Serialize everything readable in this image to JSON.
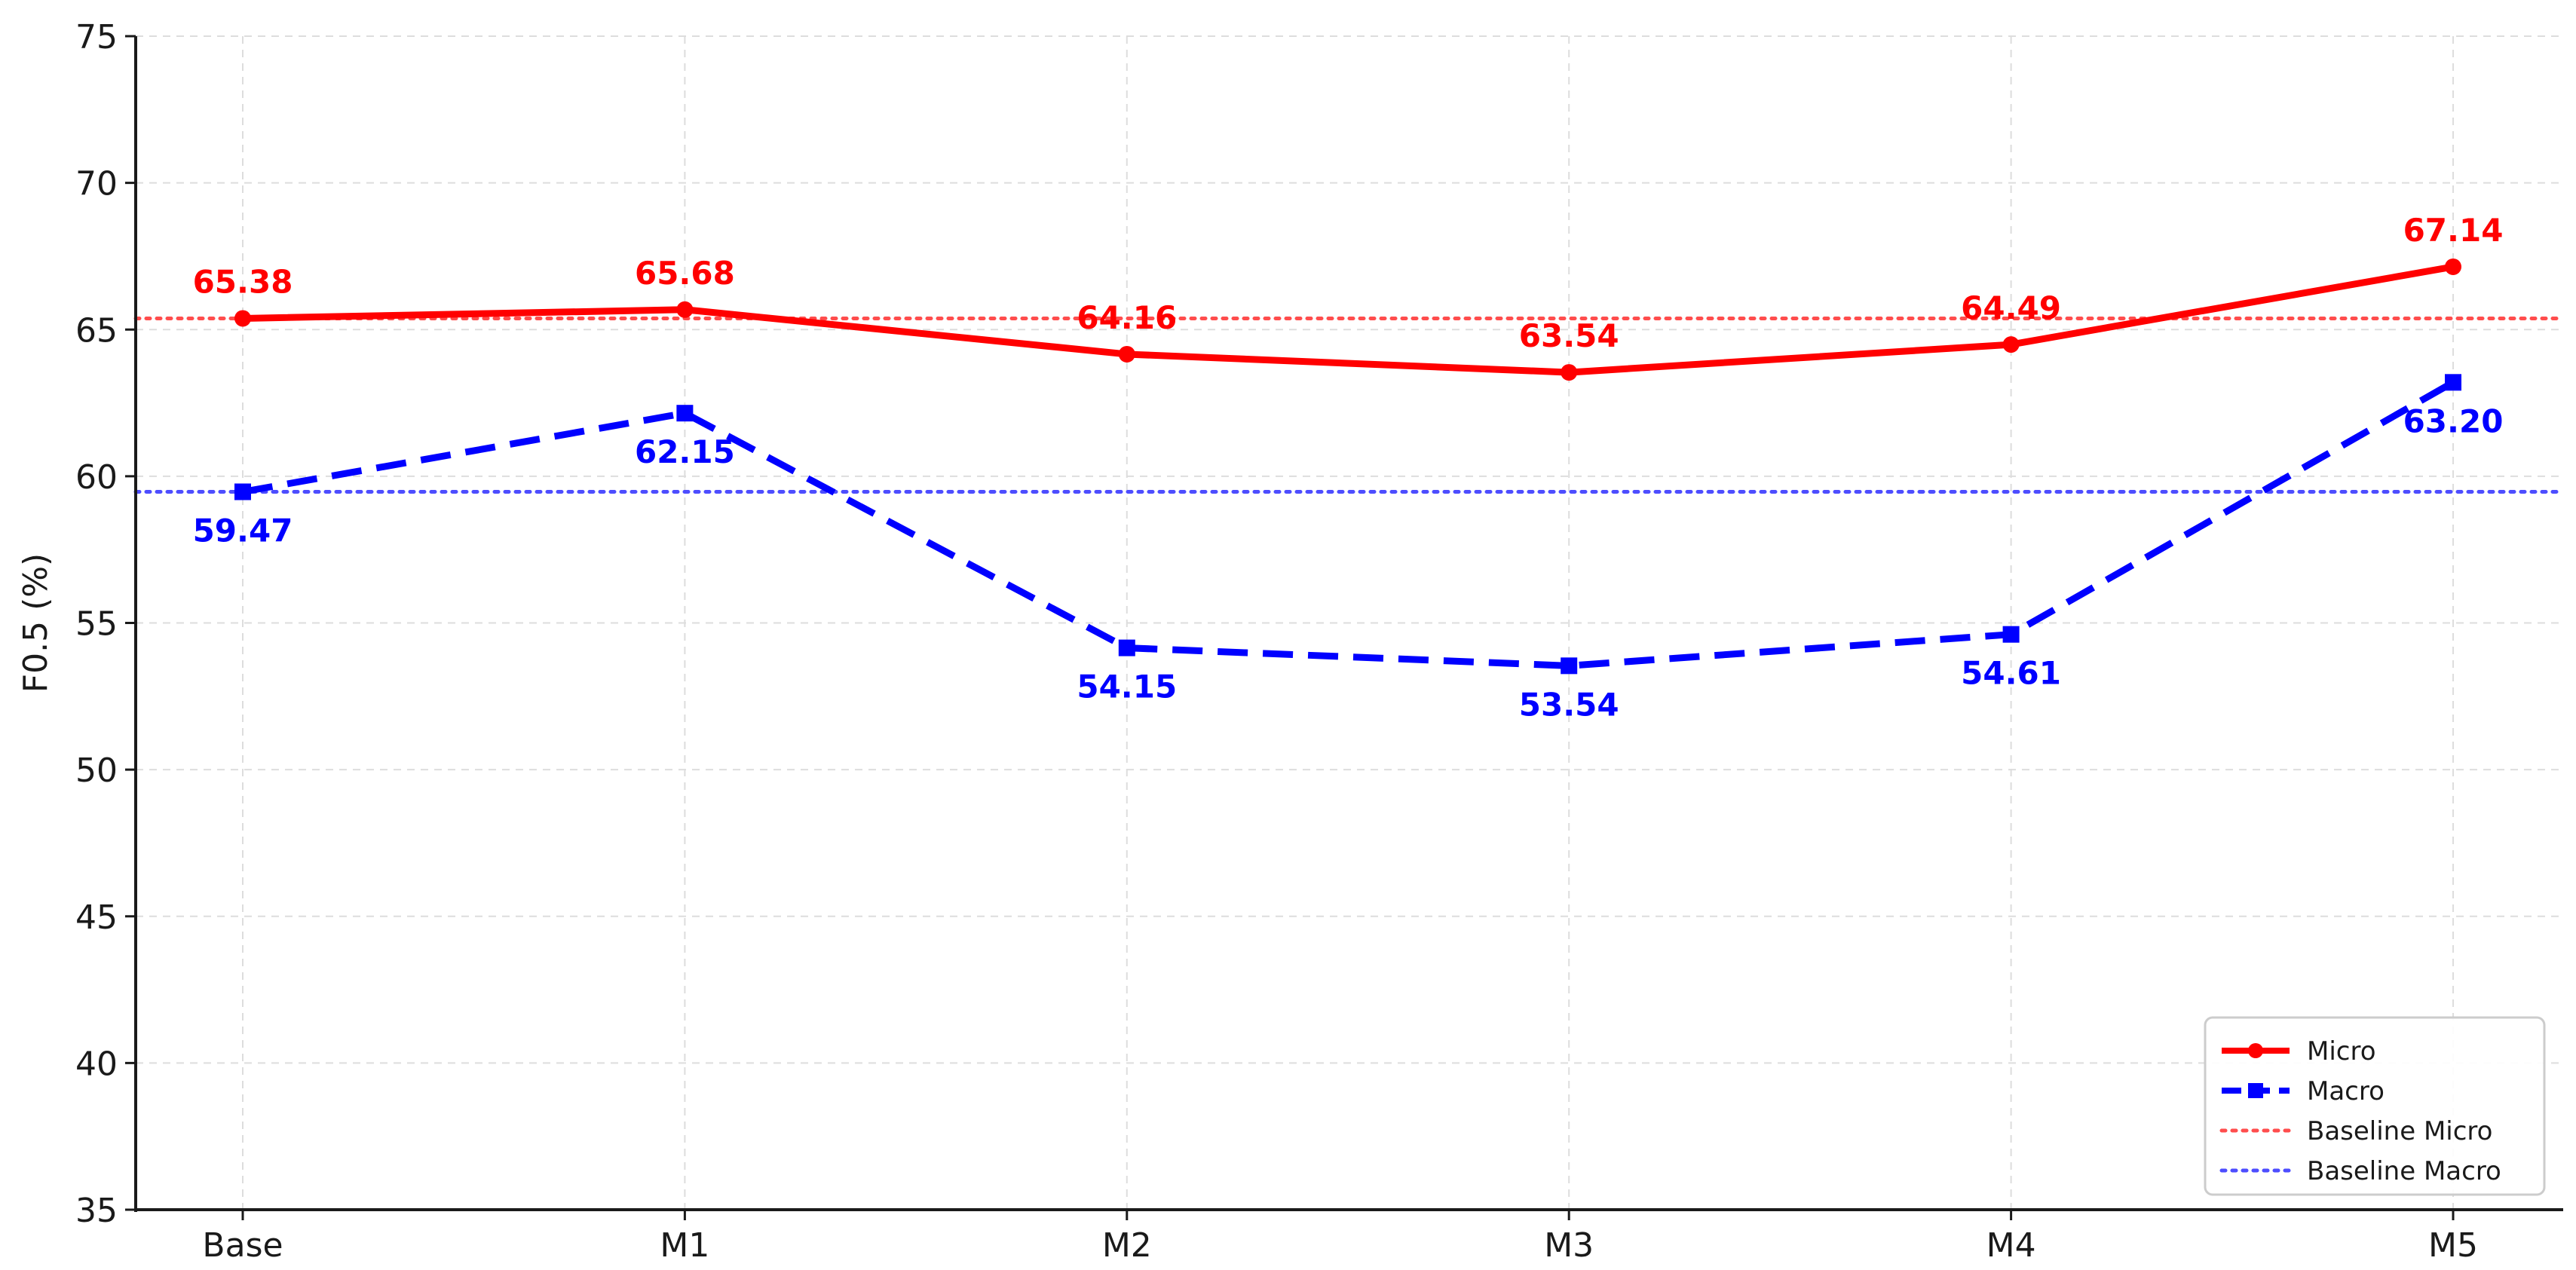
{
  "chart_data": {
    "type": "line",
    "title": "",
    "xlabel": "",
    "ylabel": "F0.5 (%)",
    "categories": [
      "Base",
      "M1",
      "M2",
      "M3",
      "M4",
      "M5"
    ],
    "ylim": [
      35,
      75
    ],
    "yticks": [
      35,
      40,
      45,
      50,
      55,
      60,
      65,
      70,
      75
    ],
    "grid": true,
    "legend_position": "bottom-right",
    "series": [
      {
        "name": "Micro",
        "values": [
          65.38,
          65.68,
          64.16,
          63.54,
          64.49,
          67.14
        ],
        "labels": [
          "65.38",
          "65.68",
          "64.16",
          "63.54",
          "64.49",
          "67.14"
        ],
        "color": "#ff0000",
        "line_style": "solid",
        "marker": "circle",
        "label_position": "above"
      },
      {
        "name": "Macro",
        "values": [
          59.47,
          62.15,
          54.15,
          53.54,
          54.61,
          63.2
        ],
        "labels": [
          "59.47",
          "62.15",
          "54.15",
          "53.54",
          "54.61",
          "63.20"
        ],
        "color": "#0000ff",
        "line_style": "dashed",
        "marker": "square",
        "label_position": "below"
      }
    ],
    "reference_lines": [
      {
        "name": "Baseline Micro",
        "value": 65.38,
        "color": "#ff4d4d",
        "line_style": "dotted"
      },
      {
        "name": "Baseline Macro",
        "value": 59.47,
        "color": "#4d4dff",
        "line_style": "dotted"
      }
    ]
  }
}
